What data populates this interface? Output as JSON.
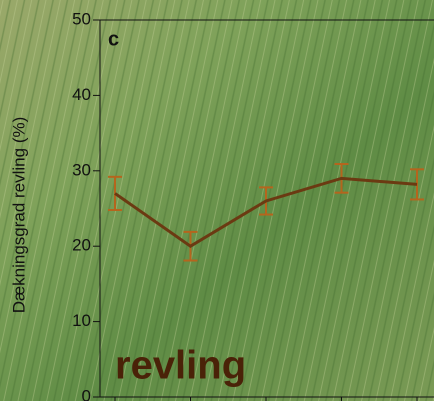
{
  "chart_data": {
    "type": "line",
    "panel_label": "c",
    "annotation": "revling",
    "y_label": "Dækningsgrad revling (%)",
    "categories": [
      null,
      null,
      null,
      null,
      null
    ],
    "series": [
      {
        "color": "#6b3a12",
        "error_color": "#b5651d",
        "values": [
          27,
          20,
          26,
          29,
          28.2
        ],
        "errors": [
          2.2,
          1.9,
          1.8,
          1.9,
          2
        ]
      }
    ],
    "ylim": [
      0,
      50
    ],
    "yticks": [
      0,
      10,
      20,
      30,
      40,
      50
    ]
  }
}
